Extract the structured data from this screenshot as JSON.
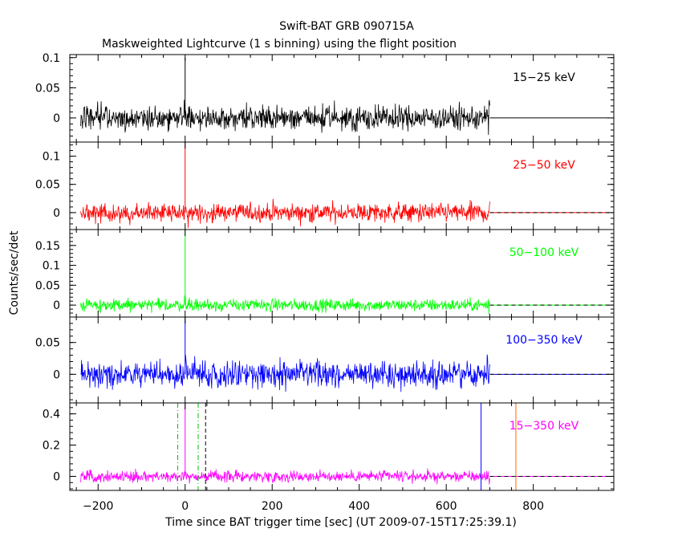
{
  "chart_data": {
    "type": "line",
    "title": "Swift-BAT GRB 090715A",
    "subtitle": "Maskweighted Lightcurve (1 s binning) using the flight position",
    "xlabel": "Time since BAT trigger time [sec] (UT 2009-07-15T17:25:39.1)",
    "ylabel": "Counts/sec/det",
    "xlim": [
      -265,
      985
    ],
    "xticks": [
      -200,
      0,
      200,
      400,
      600,
      800
    ],
    "xticklabels": [
      "−200",
      "0",
      "200",
      "400",
      "600",
      "800"
    ],
    "data_range": [
      -240,
      700
    ],
    "flat_range": [
      700,
      975
    ],
    "trigger_time": 0,
    "markers": [
      {
        "x": -17,
        "color": "#00c000",
        "style": "dash-dot",
        "panel": 4
      },
      {
        "x": 30,
        "color": "#00c000",
        "style": "dash-dot",
        "panel": 4
      },
      {
        "x": 47,
        "color": "#000000",
        "style": "dashed",
        "panel": 4
      },
      {
        "x": 680,
        "color": "#0000ff",
        "style": "solid",
        "panel": 4
      },
      {
        "x": 760,
        "color": "#ff6600",
        "style": "solid",
        "panel": 4
      }
    ],
    "series": [
      {
        "name": "15-25 keV",
        "label": "15−25 keV",
        "color": "#000000",
        "labelColor": "#000000",
        "ylim": [
          -0.04,
          0.105
        ],
        "yticks": [
          0,
          0.05,
          0.1
        ],
        "yticklabels": [
          "0",
          "0.05",
          "0.1"
        ],
        "noise": 0.014,
        "spike": 0.1
      },
      {
        "name": "25-50 keV",
        "label": "25−50 keV",
        "color": "#ff0000",
        "labelColor": "#ff0000",
        "ylim": [
          -0.03,
          0.125
        ],
        "yticks": [
          0,
          0.05,
          0.1
        ],
        "yticklabels": [
          "0",
          "0.05",
          "0.1"
        ],
        "noise": 0.012,
        "spike": 0.125
      },
      {
        "name": "50-100 keV",
        "label": "50−100 keV",
        "color": "#00ff00",
        "labelColor": "#00ff00",
        "ylim": [
          -0.03,
          0.19
        ],
        "yticks": [
          0,
          0.05,
          0.1,
          0.15
        ],
        "yticklabels": [
          "0",
          "0.05",
          "0.1",
          "0.15"
        ],
        "noise": 0.011,
        "spike": 0.19
      },
      {
        "name": "100-350 keV",
        "label": "100−350 keV",
        "color": "#0000ff",
        "labelColor": "#0000ff",
        "ylim": [
          -0.045,
          0.09
        ],
        "yticks": [
          0,
          0.05
        ],
        "yticklabels": [
          "0",
          "0.05"
        ],
        "noise": 0.014,
        "spike": 0.09
      },
      {
        "name": "15-350 keV",
        "label": "15−350 keV",
        "color": "#ff00ff",
        "labelColor": "#ff00ff",
        "ylim": [
          -0.09,
          0.47
        ],
        "yticks": [
          0,
          0.2,
          0.4
        ],
        "yticklabels": [
          "0",
          "0.2",
          "0.4"
        ],
        "noise": 0.025,
        "spike": 0.47
      }
    ]
  }
}
